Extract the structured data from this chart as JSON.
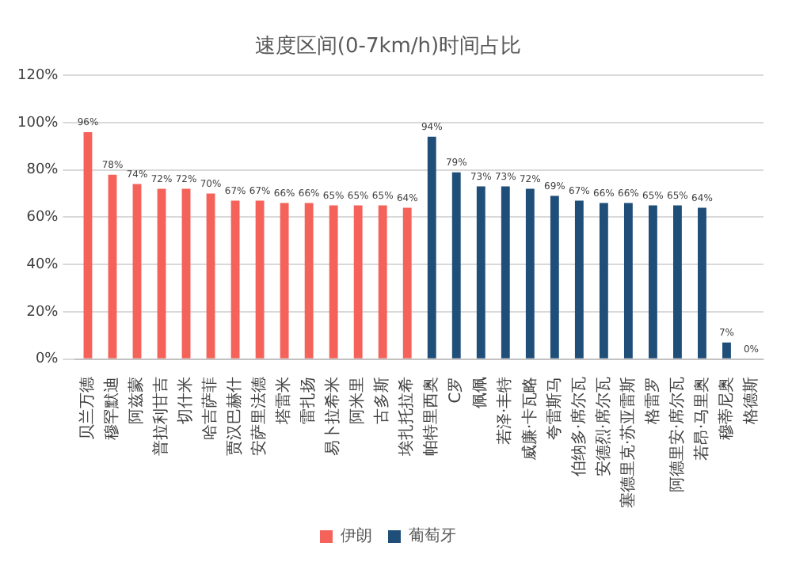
{
  "chart_data": {
    "type": "bar",
    "title": "速度区间(0-7km/h)时间占比",
    "categories": [
      "贝兰万德",
      "穆罕默迪",
      "阿兹蒙",
      "普拉利甘吉",
      "切什米",
      "哈吉萨菲",
      "贾汉巴赫什",
      "安萨里法德",
      "塔雷米",
      "雷扎扬",
      "易卜拉希米",
      "阿米里",
      "古多斯",
      "埃扎托拉希",
      "帕特里西奥",
      "C罗",
      "佩佩",
      "若泽·丰特",
      "威廉·卡瓦略",
      "夸雷斯马",
      "伯纳多·席尔瓦",
      "安德烈·席尔瓦",
      "塞德里克·苏亚雷斯",
      "格雷罗",
      "阿德里安·席尔瓦",
      "若昂·马里奥",
      "穆蒂尼奥",
      "格德斯"
    ],
    "series": [
      {
        "name": "伊朗",
        "color": "#f4625a",
        "values": [
          96,
          78,
          74,
          72,
          72,
          70,
          67,
          67,
          66,
          66,
          65,
          65,
          65,
          64,
          null,
          null,
          null,
          null,
          null,
          null,
          null,
          null,
          null,
          null,
          null,
          null,
          null,
          null
        ],
        "value_labels": [
          "96%",
          "78%",
          "74%",
          "72%",
          "72%",
          "70%",
          "67%",
          "67%",
          "66%",
          "66%",
          "65%",
          "65%",
          "65%",
          "64%",
          null,
          null,
          null,
          null,
          null,
          null,
          null,
          null,
          null,
          null,
          null,
          null,
          null,
          null
        ]
      },
      {
        "name": "葡萄牙",
        "color": "#1f4e79",
        "values": [
          null,
          null,
          null,
          null,
          null,
          null,
          null,
          null,
          null,
          null,
          null,
          null,
          null,
          null,
          94,
          79,
          73,
          73,
          72,
          69,
          67,
          66,
          66,
          65,
          65,
          64,
          7,
          0
        ],
        "value_labels": [
          null,
          null,
          null,
          null,
          null,
          null,
          null,
          null,
          null,
          null,
          null,
          null,
          null,
          null,
          "94%",
          "79%",
          "73%",
          "73%",
          "72%",
          "69%",
          "67%",
          "66%",
          "66%",
          "65%",
          "65%",
          "64%",
          "7%",
          "0%"
        ]
      }
    ],
    "ylim": [
      0,
      120
    ],
    "yticks": [
      {
        "value": 0,
        "label": "0%"
      },
      {
        "value": 20,
        "label": "20%"
      },
      {
        "value": 40,
        "label": "40%"
      },
      {
        "value": 60,
        "label": "60%"
      },
      {
        "value": 80,
        "label": "80%"
      },
      {
        "value": 100,
        "label": "100%"
      },
      {
        "value": 120,
        "label": "120%"
      }
    ],
    "grid": "y",
    "legend": "bottom"
  }
}
